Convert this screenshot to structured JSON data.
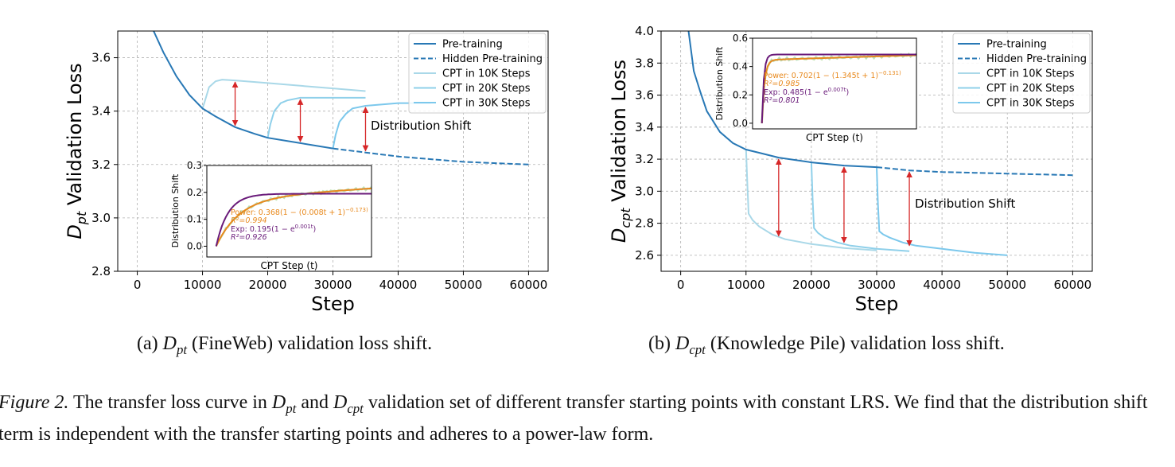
{
  "colors": {
    "pretrain": "#2878b5",
    "cpt10k": "#a9d8e8",
    "cpt20k": "#8fd0ea",
    "cpt30k": "#7cc8ec",
    "arrow": "#d62728",
    "power": "#e8891d",
    "exp": "#6a1b7a",
    "grid": "#b0b0b0"
  },
  "chart_data": [
    {
      "type": "line",
      "ylabel_base": "D",
      "ylabel_sub": "pt",
      "ylabel_rest": " Validation Loss",
      "xlabel": "Step",
      "xlim": [
        -3000,
        63000
      ],
      "ylim": [
        2.8,
        3.7
      ],
      "xticks": [
        0,
        10000,
        20000,
        30000,
        40000,
        50000,
        60000
      ],
      "yticks": [
        2.8,
        3.0,
        3.2,
        3.4,
        3.6
      ],
      "ytick_labels": [
        "2.8",
        "3.0",
        "3.2",
        "3.4",
        "3.6"
      ],
      "grid": true,
      "legend_position": "top-right",
      "legend": [
        "Pre-training",
        "Hidden Pre-training",
        "CPT in 10K Steps",
        "CPT in 20K Steps",
        "CPT in 30K Steps"
      ],
      "annotation": "Distribution Shift",
      "pretrain": {
        "name": "Pre-training",
        "x": [
          2500,
          4000,
          6000,
          8000,
          10000,
          12000,
          15000,
          18000,
          20000,
          25000,
          30000
        ],
        "y": [
          3.7,
          3.62,
          3.53,
          3.46,
          3.41,
          3.38,
          3.34,
          3.315,
          3.3,
          3.28,
          3.26
        ]
      },
      "hidden": {
        "name": "Hidden Pre-training",
        "x": [
          30000,
          35000,
          40000,
          45000,
          50000,
          55000,
          60000
        ],
        "y": [
          3.26,
          3.245,
          3.23,
          3.22,
          3.21,
          3.205,
          3.2
        ]
      },
      "cpt": [
        {
          "name": "CPT in 10K Steps",
          "x": [
            10000,
            10400,
            11000,
            12000,
            13000,
            15000,
            20000,
            25000,
            30000,
            35000
          ],
          "y": [
            3.41,
            3.44,
            3.49,
            3.512,
            3.518,
            3.515,
            3.505,
            3.495,
            3.485,
            3.475
          ]
        },
        {
          "name": "CPT in 20K Steps",
          "x": [
            20000,
            20400,
            21000,
            22000,
            23000,
            25000,
            30000,
            35000
          ],
          "y": [
            3.3,
            3.35,
            3.4,
            3.43,
            3.44,
            3.45,
            3.45,
            3.45
          ]
        },
        {
          "name": "CPT in 30K Steps",
          "x": [
            30000,
            30400,
            31000,
            32000,
            33000,
            35000,
            40000,
            45000
          ],
          "y": [
            3.26,
            3.31,
            3.36,
            3.39,
            3.41,
            3.42,
            3.43,
            3.43
          ]
        }
      ],
      "arrows": [
        {
          "x": 15000,
          "y1": 3.34,
          "y2": 3.515
        },
        {
          "x": 25000,
          "y1": 3.28,
          "y2": 3.45
        },
        {
          "x": 35000,
          "y1": 3.245,
          "y2": 3.42
        }
      ],
      "inset": {
        "ylabel": "Distribution Shift",
        "xlabel": "CPT Step (t)",
        "xlim": [
          -0.06,
          1.0
        ],
        "ylim": [
          -0.04,
          0.3
        ],
        "yticks": [
          0.0,
          0.1,
          0.2,
          0.3
        ],
        "ytick_labels": [
          "0.0",
          "0.1",
          "0.2",
          "0.3"
        ],
        "power_label": "Power: 0.368(1 − (0.008t + 1)^{-0.173})",
        "power_r2": "R²=0.994",
        "exp_label": "Exp: 0.195(1 − e^{0.001t})",
        "exp_r2": "R²=0.926",
        "power_label_text": "Power: 0.368(1 − (0.008t + 1)",
        "power_exp_text": "−0.173)",
        "exp_label_text": "Exp: 0.195(1 − e",
        "exp_exp_text": "0.001t",
        "exp_close": ")",
        "power_r2_text": "R²=0.994",
        "exp_r2_text": "R²=0.926",
        "power_plateau": 0.215,
        "exp_plateau": 0.195
      }
    },
    {
      "type": "line",
      "ylabel_base": "D",
      "ylabel_sub": "cpt",
      "ylabel_rest": " Validation Loss",
      "xlabel": "Step",
      "xlim": [
        -3000,
        63000
      ],
      "ylim": [
        2.5,
        4.0
      ],
      "xticks": [
        0,
        10000,
        20000,
        30000,
        40000,
        50000,
        60000
      ],
      "yticks": [
        2.6,
        2.8,
        3.0,
        3.2,
        3.4,
        3.6,
        3.8,
        4.0
      ],
      "ytick_labels": [
        "2.6",
        "2.8",
        "3.0",
        "3.2",
        "3.4",
        "3.6",
        "3.8",
        "4.0"
      ],
      "grid": true,
      "legend_position": "top-right",
      "legend": [
        "Pre-training",
        "Hidden Pre-training",
        "CPT in 10K Steps",
        "CPT in 20K Steps",
        "CPT in 30K Steps"
      ],
      "annotation": "Distribution Shift",
      "pretrain": {
        "name": "Pre-training",
        "x": [
          1200,
          2000,
          3000,
          4000,
          6000,
          8000,
          10000,
          12000,
          15000,
          20000,
          25000,
          30000
        ],
        "y": [
          4.0,
          3.75,
          3.62,
          3.5,
          3.37,
          3.3,
          3.26,
          3.24,
          3.21,
          3.18,
          3.16,
          3.15
        ]
      },
      "hidden": {
        "name": "Hidden Pre-training",
        "x": [
          30000,
          35000,
          40000,
          45000,
          50000,
          55000,
          60000
        ],
        "y": [
          3.15,
          3.13,
          3.12,
          3.115,
          3.11,
          3.105,
          3.1
        ]
      },
      "cpt": [
        {
          "name": "CPT in 10K Steps",
          "x": [
            10000,
            10200,
            10400,
            11000,
            12000,
            14000,
            16000,
            20000,
            25000,
            30000
          ],
          "y": [
            3.26,
            3.05,
            2.86,
            2.82,
            2.78,
            2.73,
            2.7,
            2.67,
            2.645,
            2.63
          ]
        },
        {
          "name": "CPT in 20K Steps",
          "x": [
            20000,
            20200,
            20400,
            21000,
            22000,
            24000,
            26000,
            30000,
            35000
          ],
          "y": [
            3.18,
            2.95,
            2.77,
            2.74,
            2.71,
            2.68,
            2.66,
            2.64,
            2.625
          ]
        },
        {
          "name": "CPT in 30K Steps",
          "x": [
            30000,
            30200,
            30400,
            31000,
            32000,
            34000,
            36000,
            40000,
            45000,
            50000
          ],
          "y": [
            3.15,
            2.92,
            2.75,
            2.73,
            2.71,
            2.68,
            2.66,
            2.64,
            2.615,
            2.6
          ]
        }
      ],
      "arrows": [
        {
          "x": 15000,
          "y1": 2.71,
          "y2": 3.21
        },
        {
          "x": 25000,
          "y1": 2.67,
          "y2": 3.16
        },
        {
          "x": 35000,
          "y1": 2.65,
          "y2": 3.13
        }
      ],
      "inset": {
        "ylabel": "Distribution Shift",
        "xlabel": "CPT Step (t)",
        "xlim": [
          -0.06,
          1.0
        ],
        "ylim": [
          -0.04,
          0.6
        ],
        "yticks": [
          0.0,
          0.2,
          0.4,
          0.6
        ],
        "ytick_labels": [
          "0.0",
          "0.2",
          "0.4",
          "0.6"
        ],
        "power_label_text": "Power: 0.702(1 − (1.345t + 1)",
        "power_exp_text": "−0.131)",
        "exp_label_text": "Exp: 0.485(1 − e",
        "exp_exp_text": "0.007t",
        "exp_close": ")",
        "power_r2_text": "R²=0.985",
        "exp_r2_text": "R²=0.801",
        "power_plateau": 0.5,
        "exp_plateau": 0.485
      }
    }
  ],
  "captions": {
    "a_label": "(a) ",
    "a_math_base": "D",
    "a_math_sub": "pt",
    "a_text": " (FineWeb) validation loss shift.",
    "b_label": "(b) ",
    "b_math_base": "D",
    "b_math_sub": "cpt",
    "b_text": " (Knowledge Pile) validation loss shift."
  },
  "figure_caption": {
    "label": "Figure 2.",
    "text1": " The transfer loss curve in ",
    "m1_base": "D",
    "m1_sub": "pt",
    "text2": " and ",
    "m2_base": "D",
    "m2_sub": "cpt",
    "text3": " validation set of different transfer starting points with constant LRS. We find that the distribution shift term is independent with the transfer starting points and adheres to a power-law form."
  }
}
